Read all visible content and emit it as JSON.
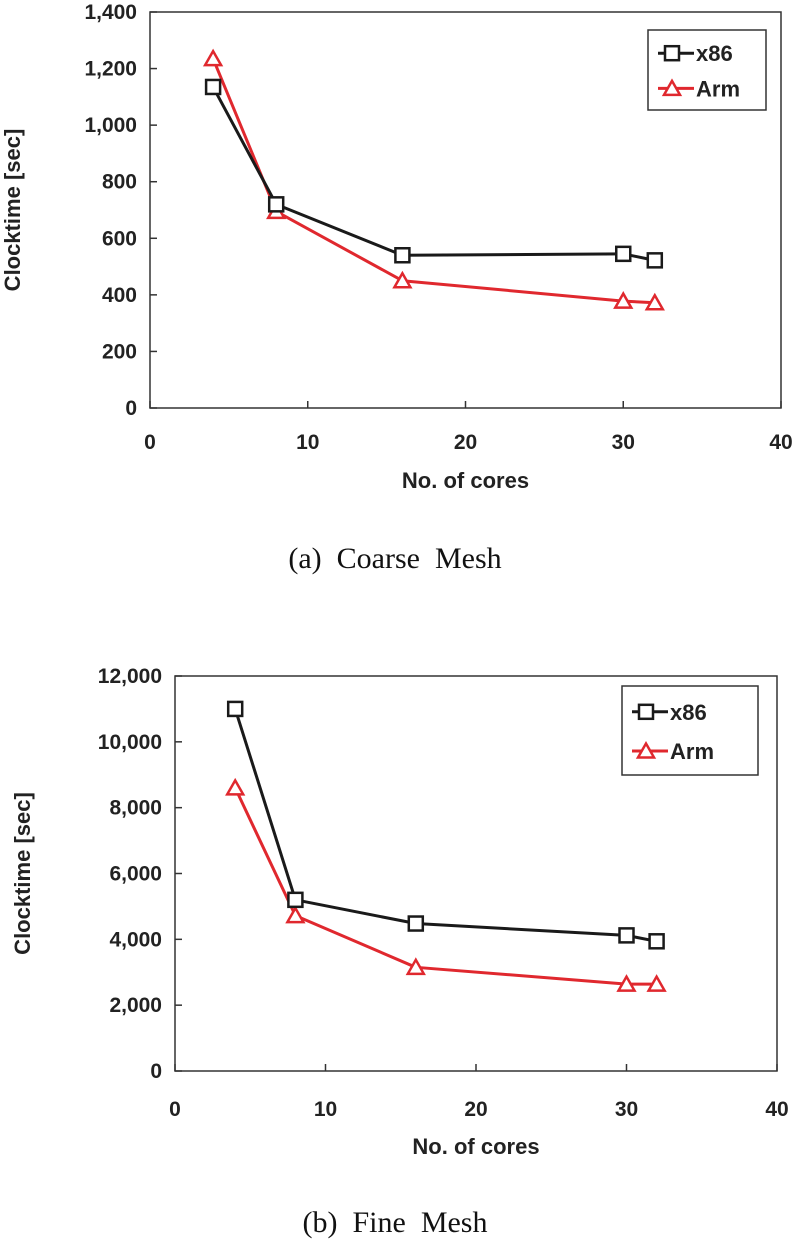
{
  "chart_data": [
    {
      "type": "line",
      "caption": "(a)  Coarse  Mesh",
      "xlabel": "No. of cores",
      "ylabel": "Clocktime [sec]",
      "xlim": [
        0,
        40
      ],
      "ylim": [
        0,
        1400
      ],
      "xticks": [
        "0",
        "10",
        "20",
        "30",
        "40"
      ],
      "yticks": [
        "0",
        "200",
        "400",
        "600",
        "800",
        "1,000",
        "1,200",
        "1,400"
      ],
      "grid": false,
      "legend_position": "top-right",
      "series": [
        {
          "name": "x86",
          "color": "#1a1a1a",
          "marker": "square",
          "x": [
            4,
            8,
            16,
            30,
            32
          ],
          "y": [
            1135,
            720,
            540,
            545,
            522
          ]
        },
        {
          "name": "Arm",
          "color": "#e0282e",
          "marker": "triangle",
          "x": [
            4,
            8,
            16,
            30,
            32
          ],
          "y": [
            1235,
            695,
            450,
            378,
            372
          ]
        }
      ]
    },
    {
      "type": "line",
      "caption": "(b)  Fine  Mesh",
      "xlabel": "No. of cores",
      "ylabel": "Clocktime [sec]",
      "xlim": [
        0,
        40
      ],
      "ylim": [
        0,
        12000
      ],
      "xticks": [
        "0",
        "10",
        "20",
        "30",
        "40"
      ],
      "yticks": [
        "0",
        "2,000",
        "4,000",
        "6,000",
        "8,000",
        "10,000",
        "12,000"
      ],
      "grid": false,
      "legend_position": "top-right",
      "series": [
        {
          "name": "x86",
          "color": "#1a1a1a",
          "marker": "square",
          "x": [
            4,
            8,
            16,
            30,
            32
          ],
          "y": [
            11000,
            5200,
            4480,
            4120,
            3940
          ]
        },
        {
          "name": "Arm",
          "color": "#e0282e",
          "marker": "triangle",
          "x": [
            4,
            8,
            16,
            30,
            32
          ],
          "y": [
            8600,
            4720,
            3150,
            2640,
            2640
          ]
        }
      ]
    }
  ]
}
